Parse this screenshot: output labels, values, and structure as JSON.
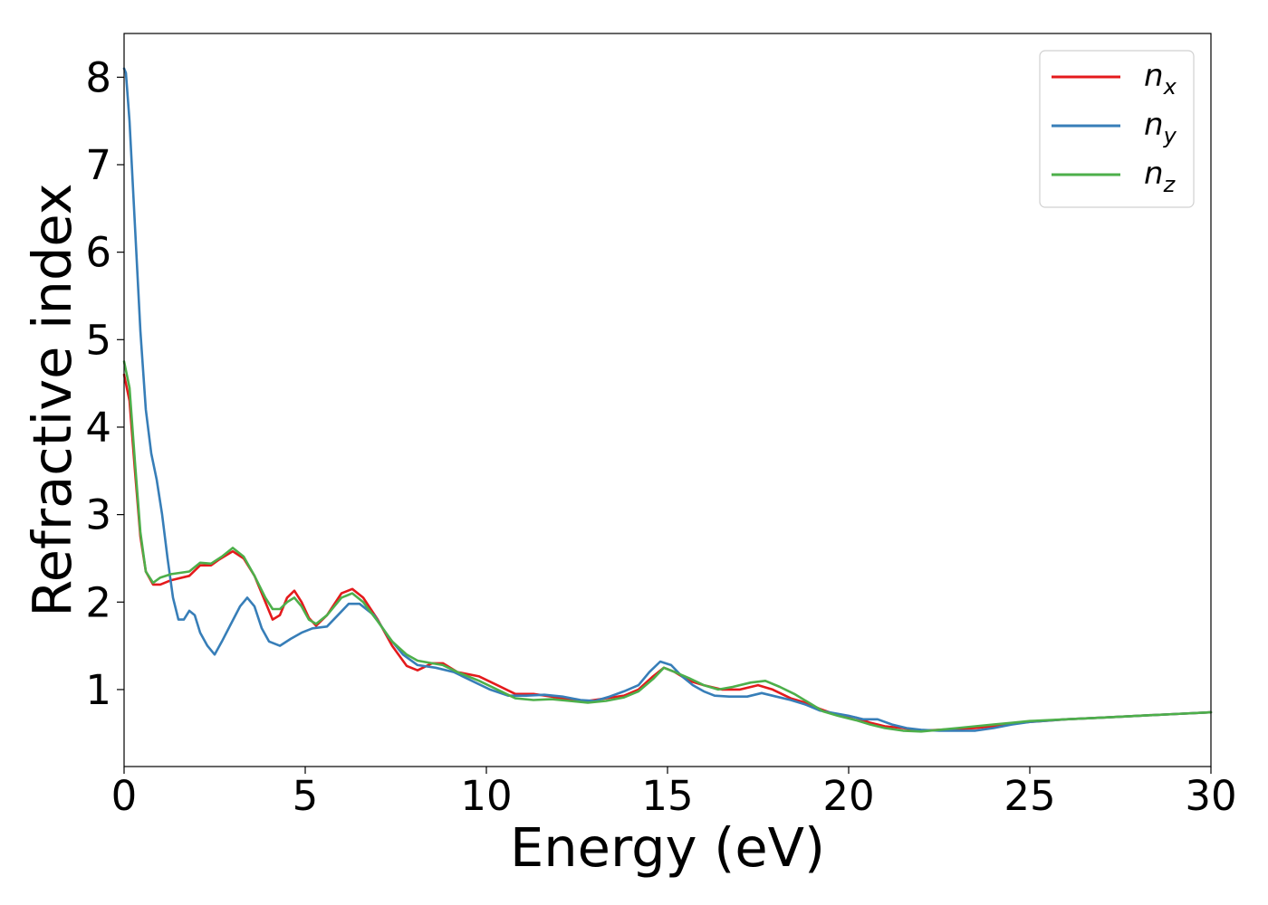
{
  "chart_data": {
    "type": "line",
    "title": "",
    "xlabel": "Energy (eV)",
    "ylabel": "Refractive index",
    "xlim": [
      0,
      30
    ],
    "ylim": [
      0.12,
      8.5
    ],
    "xticks": [
      "0",
      "5",
      "10",
      "15",
      "20",
      "25",
      "30"
    ],
    "yticks": [
      "1",
      "2",
      "3",
      "4",
      "5",
      "6",
      "7",
      "8"
    ],
    "grid": false,
    "legend_position": "top-right",
    "series": [
      {
        "name": "n_x",
        "label_base": "n",
        "label_sub": "x",
        "color": "#e41a1c",
        "points": [
          [
            0,
            4.6
          ],
          [
            0.15,
            4.3
          ],
          [
            0.3,
            3.5
          ],
          [
            0.45,
            2.75
          ],
          [
            0.6,
            2.35
          ],
          [
            0.8,
            2.2
          ],
          [
            1.0,
            2.2
          ],
          [
            1.3,
            2.25
          ],
          [
            1.8,
            2.3
          ],
          [
            2.1,
            2.42
          ],
          [
            2.4,
            2.42
          ],
          [
            2.6,
            2.48
          ],
          [
            3.0,
            2.58
          ],
          [
            3.3,
            2.5
          ],
          [
            3.6,
            2.3
          ],
          [
            3.9,
            2.0
          ],
          [
            4.1,
            1.8
          ],
          [
            4.3,
            1.85
          ],
          [
            4.5,
            2.05
          ],
          [
            4.7,
            2.13
          ],
          [
            4.9,
            2.0
          ],
          [
            5.1,
            1.82
          ],
          [
            5.3,
            1.73
          ],
          [
            5.6,
            1.85
          ],
          [
            6.0,
            2.1
          ],
          [
            6.3,
            2.15
          ],
          [
            6.6,
            2.05
          ],
          [
            7.0,
            1.8
          ],
          [
            7.4,
            1.5
          ],
          [
            7.8,
            1.27
          ],
          [
            8.1,
            1.22
          ],
          [
            8.5,
            1.3
          ],
          [
            8.8,
            1.3
          ],
          [
            9.2,
            1.2
          ],
          [
            9.8,
            1.15
          ],
          [
            10.3,
            1.05
          ],
          [
            10.8,
            0.95
          ],
          [
            11.3,
            0.95
          ],
          [
            11.8,
            0.92
          ],
          [
            12.3,
            0.88
          ],
          [
            12.8,
            0.87
          ],
          [
            13.3,
            0.9
          ],
          [
            13.8,
            0.93
          ],
          [
            14.2,
            1.0
          ],
          [
            14.6,
            1.15
          ],
          [
            14.9,
            1.25
          ],
          [
            15.2,
            1.2
          ],
          [
            15.6,
            1.1
          ],
          [
            16.0,
            1.05
          ],
          [
            16.5,
            1.0
          ],
          [
            17.0,
            1.0
          ],
          [
            17.5,
            1.05
          ],
          [
            17.9,
            1.0
          ],
          [
            18.4,
            0.9
          ],
          [
            18.8,
            0.85
          ],
          [
            19.2,
            0.78
          ],
          [
            19.6,
            0.72
          ],
          [
            20.2,
            0.68
          ],
          [
            20.6,
            0.62
          ],
          [
            21.0,
            0.58
          ],
          [
            21.5,
            0.56
          ],
          [
            22.0,
            0.53
          ],
          [
            22.5,
            0.54
          ],
          [
            23.0,
            0.55
          ],
          [
            23.5,
            0.56
          ],
          [
            24.0,
            0.58
          ],
          [
            24.5,
            0.61
          ],
          [
            25.0,
            0.63
          ],
          [
            26.0,
            0.66
          ],
          [
            27.0,
            0.68
          ],
          [
            28.0,
            0.7
          ],
          [
            29.0,
            0.72
          ],
          [
            30.0,
            0.74
          ]
        ]
      },
      {
        "name": "n_y",
        "label_base": "n",
        "label_sub": "y",
        "color": "#377eb8",
        "points": [
          [
            0,
            8.1
          ],
          [
            0.05,
            8.05
          ],
          [
            0.15,
            7.5
          ],
          [
            0.3,
            6.3
          ],
          [
            0.45,
            5.1
          ],
          [
            0.6,
            4.2
          ],
          [
            0.75,
            3.7
          ],
          [
            0.9,
            3.4
          ],
          [
            1.05,
            3.0
          ],
          [
            1.2,
            2.5
          ],
          [
            1.35,
            2.05
          ],
          [
            1.5,
            1.8
          ],
          [
            1.65,
            1.8
          ],
          [
            1.8,
            1.9
          ],
          [
            1.95,
            1.85
          ],
          [
            2.1,
            1.65
          ],
          [
            2.3,
            1.5
          ],
          [
            2.5,
            1.4
          ],
          [
            2.7,
            1.55
          ],
          [
            2.95,
            1.75
          ],
          [
            3.2,
            1.95
          ],
          [
            3.4,
            2.05
          ],
          [
            3.6,
            1.95
          ],
          [
            3.8,
            1.7
          ],
          [
            4.0,
            1.55
          ],
          [
            4.3,
            1.5
          ],
          [
            4.6,
            1.58
          ],
          [
            4.9,
            1.65
          ],
          [
            5.2,
            1.7
          ],
          [
            5.6,
            1.72
          ],
          [
            5.9,
            1.85
          ],
          [
            6.2,
            1.98
          ],
          [
            6.5,
            1.98
          ],
          [
            6.9,
            1.85
          ],
          [
            7.3,
            1.6
          ],
          [
            7.7,
            1.4
          ],
          [
            8.1,
            1.28
          ],
          [
            8.6,
            1.25
          ],
          [
            9.1,
            1.2
          ],
          [
            9.6,
            1.1
          ],
          [
            10.1,
            1.0
          ],
          [
            10.6,
            0.93
          ],
          [
            11.1,
            0.93
          ],
          [
            11.6,
            0.94
          ],
          [
            12.1,
            0.92
          ],
          [
            12.6,
            0.88
          ],
          [
            13.0,
            0.87
          ],
          [
            13.4,
            0.92
          ],
          [
            13.8,
            0.98
          ],
          [
            14.2,
            1.05
          ],
          [
            14.5,
            1.2
          ],
          [
            14.8,
            1.32
          ],
          [
            15.1,
            1.28
          ],
          [
            15.4,
            1.15
          ],
          [
            15.7,
            1.05
          ],
          [
            16.0,
            0.98
          ],
          [
            16.3,
            0.93
          ],
          [
            16.7,
            0.92
          ],
          [
            17.2,
            0.92
          ],
          [
            17.6,
            0.96
          ],
          [
            18.0,
            0.92
          ],
          [
            18.4,
            0.88
          ],
          [
            18.8,
            0.83
          ],
          [
            19.2,
            0.76
          ],
          [
            19.6,
            0.73
          ],
          [
            20.0,
            0.7
          ],
          [
            20.4,
            0.66
          ],
          [
            20.8,
            0.66
          ],
          [
            21.2,
            0.6
          ],
          [
            21.6,
            0.56
          ],
          [
            22.0,
            0.54
          ],
          [
            22.5,
            0.53
          ],
          [
            23.0,
            0.53
          ],
          [
            23.5,
            0.53
          ],
          [
            24.0,
            0.56
          ],
          [
            24.5,
            0.6
          ],
          [
            25.0,
            0.63
          ],
          [
            26.0,
            0.66
          ],
          [
            27.0,
            0.68
          ],
          [
            28.0,
            0.7
          ],
          [
            29.0,
            0.72
          ],
          [
            30.0,
            0.74
          ]
        ]
      },
      {
        "name": "n_z",
        "label_base": "n",
        "label_sub": "z",
        "color": "#4daf4a",
        "points": [
          [
            0,
            4.75
          ],
          [
            0.15,
            4.45
          ],
          [
            0.3,
            3.6
          ],
          [
            0.45,
            2.8
          ],
          [
            0.6,
            2.35
          ],
          [
            0.8,
            2.22
          ],
          [
            1.0,
            2.28
          ],
          [
            1.3,
            2.32
          ],
          [
            1.8,
            2.35
          ],
          [
            2.1,
            2.45
          ],
          [
            2.4,
            2.44
          ],
          [
            2.7,
            2.52
          ],
          [
            3.0,
            2.62
          ],
          [
            3.3,
            2.52
          ],
          [
            3.6,
            2.3
          ],
          [
            3.9,
            2.05
          ],
          [
            4.1,
            1.92
          ],
          [
            4.3,
            1.92
          ],
          [
            4.5,
            2.0
          ],
          [
            4.7,
            2.05
          ],
          [
            4.9,
            1.95
          ],
          [
            5.1,
            1.8
          ],
          [
            5.3,
            1.75
          ],
          [
            5.6,
            1.85
          ],
          [
            6.0,
            2.05
          ],
          [
            6.3,
            2.1
          ],
          [
            6.6,
            2.0
          ],
          [
            7.0,
            1.78
          ],
          [
            7.4,
            1.55
          ],
          [
            7.8,
            1.4
          ],
          [
            8.1,
            1.33
          ],
          [
            8.5,
            1.3
          ],
          [
            8.8,
            1.28
          ],
          [
            9.2,
            1.2
          ],
          [
            9.8,
            1.1
          ],
          [
            10.3,
            1.0
          ],
          [
            10.8,
            0.9
          ],
          [
            11.3,
            0.88
          ],
          [
            11.8,
            0.89
          ],
          [
            12.3,
            0.87
          ],
          [
            12.8,
            0.85
          ],
          [
            13.3,
            0.87
          ],
          [
            13.8,
            0.91
          ],
          [
            14.2,
            0.98
          ],
          [
            14.6,
            1.12
          ],
          [
            14.9,
            1.25
          ],
          [
            15.2,
            1.2
          ],
          [
            15.6,
            1.13
          ],
          [
            16.0,
            1.05
          ],
          [
            16.4,
            1.0
          ],
          [
            16.8,
            1.03
          ],
          [
            17.3,
            1.08
          ],
          [
            17.7,
            1.1
          ],
          [
            18.1,
            1.03
          ],
          [
            18.5,
            0.95
          ],
          [
            18.9,
            0.85
          ],
          [
            19.3,
            0.75
          ],
          [
            19.7,
            0.7
          ],
          [
            20.2,
            0.65
          ],
          [
            20.6,
            0.6
          ],
          [
            21.0,
            0.56
          ],
          [
            21.5,
            0.53
          ],
          [
            22.0,
            0.52
          ],
          [
            22.5,
            0.54
          ],
          [
            23.0,
            0.56
          ],
          [
            23.5,
            0.58
          ],
          [
            24.0,
            0.6
          ],
          [
            24.5,
            0.62
          ],
          [
            25.0,
            0.64
          ],
          [
            26.0,
            0.66
          ],
          [
            27.0,
            0.68
          ],
          [
            28.0,
            0.7
          ],
          [
            29.0,
            0.72
          ],
          [
            30.0,
            0.74
          ]
        ]
      }
    ]
  }
}
